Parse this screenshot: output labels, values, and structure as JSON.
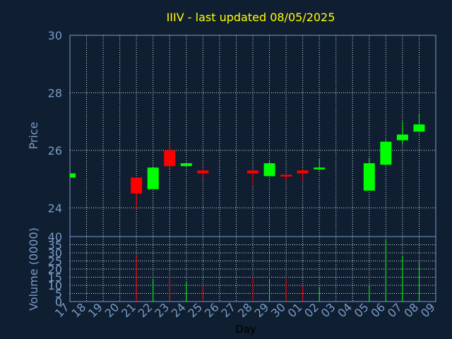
{
  "chart_data": {
    "type": "candlestick",
    "title": "IIIV - last updated 08/05/2025",
    "price_panel": {
      "ylabel": "Price",
      "ylim": [
        23,
        30
      ],
      "yticks": [
        24,
        26,
        28,
        30
      ],
      "grid": true
    },
    "volume_panel": {
      "ylabel": "Volume (0000)",
      "ylim": [
        0,
        40
      ],
      "yticks": [
        0,
        5,
        10,
        15,
        20,
        25,
        30,
        35,
        40
      ],
      "grid": true
    },
    "xlabel": "Day",
    "x_ticks": [
      "17",
      "18",
      "19",
      "20",
      "21",
      "22",
      "23",
      "24",
      "25",
      "26",
      "27",
      "28",
      "29",
      "30",
      "01",
      "02",
      "03",
      "04",
      "05",
      "06",
      "07",
      "08",
      "09"
    ],
    "colors": {
      "up": "#00ff00",
      "down": "#ff0000",
      "grid": "#ffffff",
      "axis": "#7a9cc6",
      "title": "#ffff00",
      "background": "#0f1e31",
      "plot_border": "#7a9cc6"
    },
    "candles": [
      {
        "day": "17",
        "open": 25.05,
        "close": 25.2,
        "high": 25.2,
        "low": 25.05,
        "volume": 0
      },
      {
        "day": "21",
        "open": 25.05,
        "close": 24.5,
        "high": 25.05,
        "low": 23.95,
        "volume": 28
      },
      {
        "day": "22",
        "open": 24.65,
        "close": 25.4,
        "high": 25.4,
        "low": 24.65,
        "volume": 14
      },
      {
        "day": "23",
        "open": 26.0,
        "close": 25.45,
        "high": 26.3,
        "low": 25.35,
        "volume": 15
      },
      {
        "day": "24",
        "open": 25.45,
        "close": 25.55,
        "high": 25.55,
        "low": 25.45,
        "volume": 12
      },
      {
        "day": "25",
        "open": 25.3,
        "close": 25.2,
        "high": 25.35,
        "low": 25.0,
        "volume": 10
      },
      {
        "day": "28",
        "open": 25.3,
        "close": 25.2,
        "high": 25.3,
        "low": 24.8,
        "volume": 15
      },
      {
        "day": "29",
        "open": 25.1,
        "close": 25.55,
        "high": 25.65,
        "low": 25.1,
        "volume": 14
      },
      {
        "day": "30",
        "open": 25.15,
        "close": 25.1,
        "high": 25.15,
        "low": 24.9,
        "volume": 14
      },
      {
        "day": "01",
        "open": 25.3,
        "close": 25.2,
        "high": 25.35,
        "low": 24.95,
        "volume": 10
      },
      {
        "day": "02",
        "open": 25.35,
        "close": 25.4,
        "high": 25.7,
        "low": 25.3,
        "volume": 9
      },
      {
        "day": "05",
        "open": 24.6,
        "close": 25.55,
        "high": 25.75,
        "low": 24.6,
        "volume": 10
      },
      {
        "day": "06",
        "open": 25.5,
        "close": 26.3,
        "high": 26.35,
        "low": 25.5,
        "volume": 38
      },
      {
        "day": "07",
        "open": 26.35,
        "close": 26.55,
        "high": 27.0,
        "low": 26.2,
        "volume": 28
      },
      {
        "day": "08",
        "open": 26.65,
        "close": 26.9,
        "high": 27.25,
        "low": 26.65,
        "volume": 24
      }
    ]
  }
}
